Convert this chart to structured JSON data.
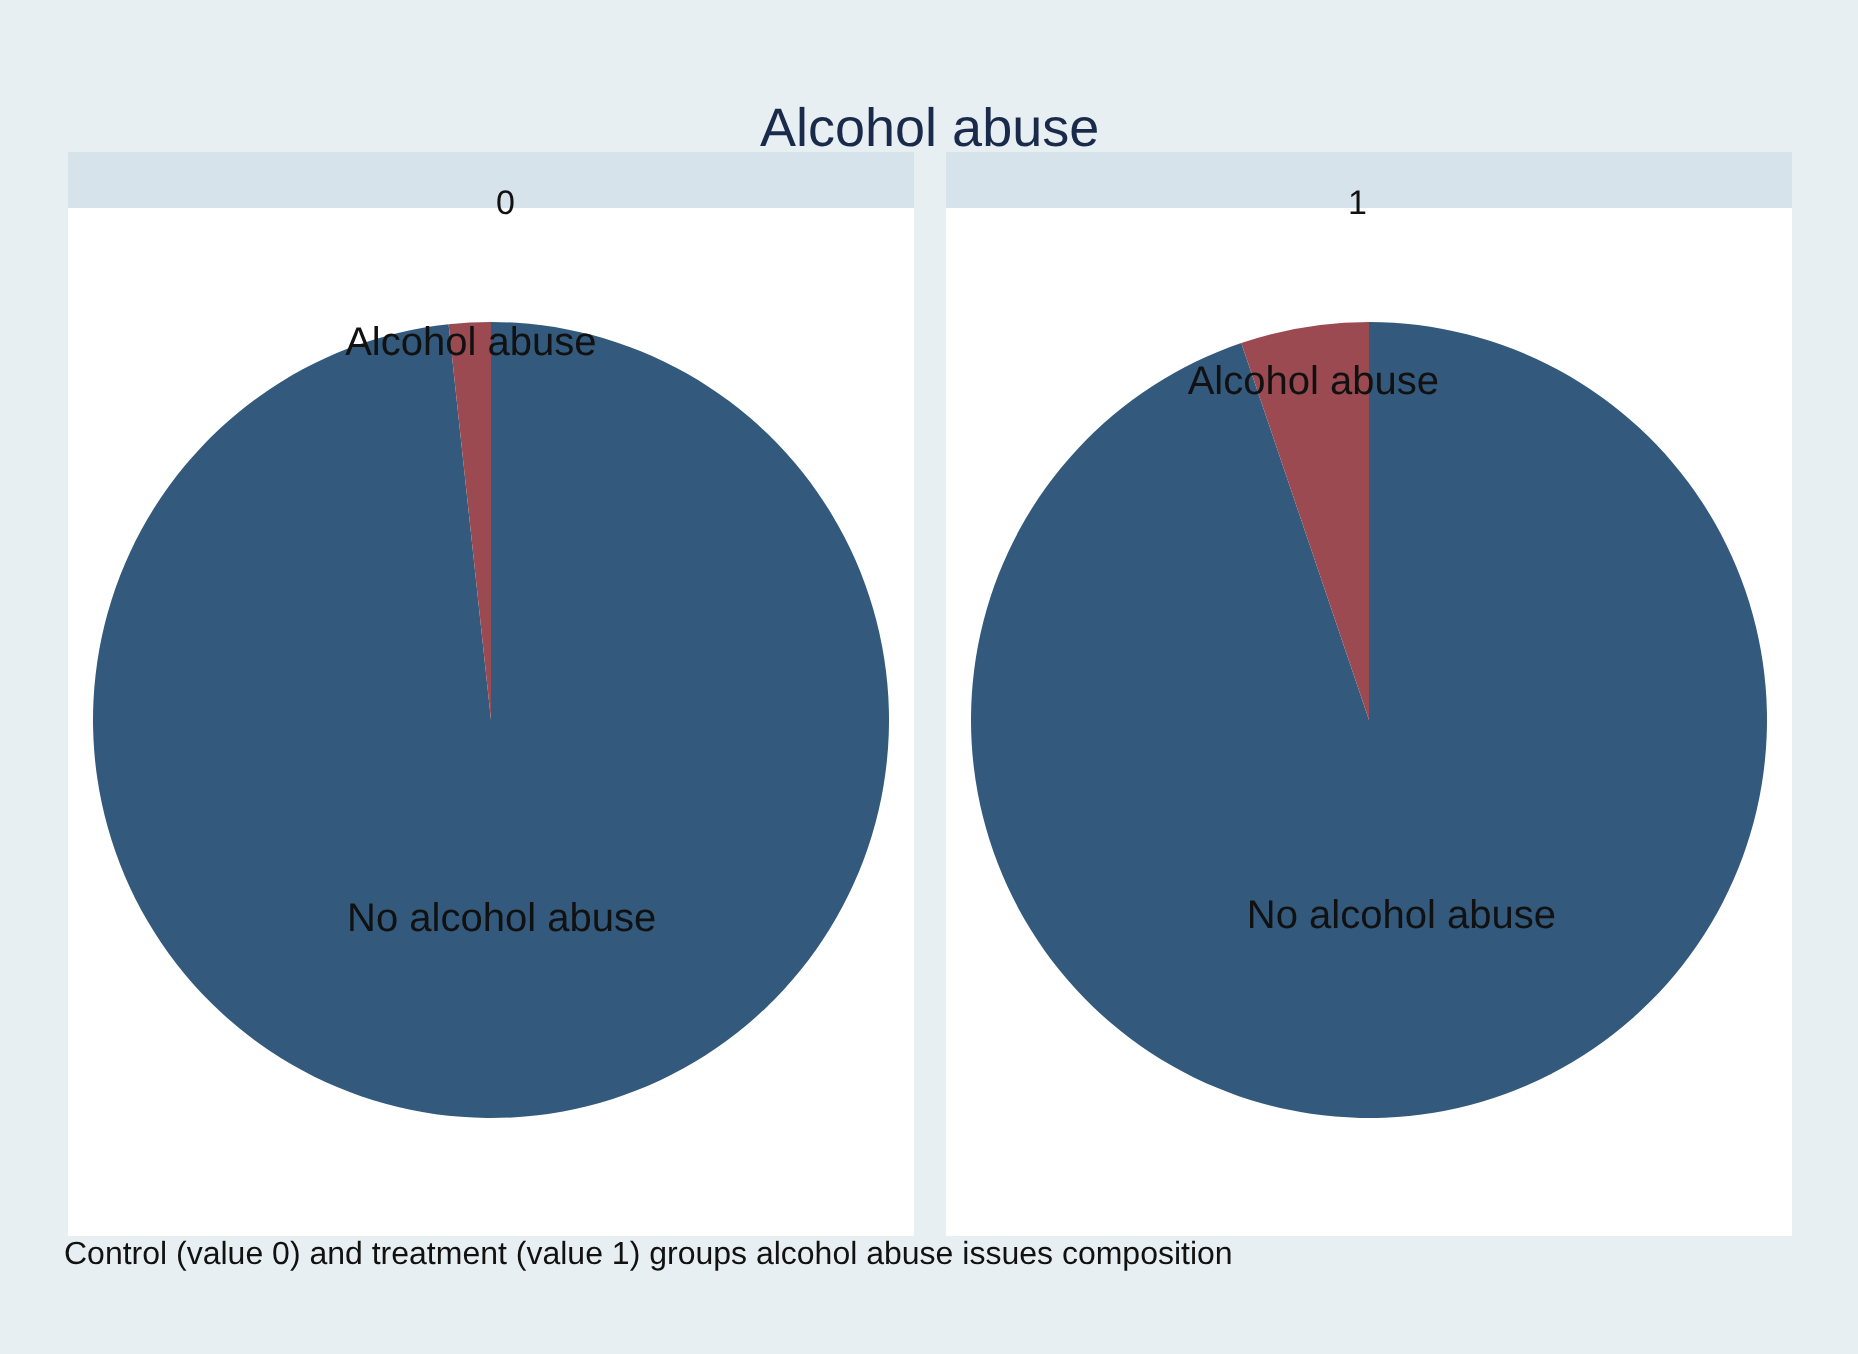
{
  "chart_data": [
    {
      "type": "pie",
      "title": "0",
      "annotations": [
        "Alcohol abuse"
      ],
      "categories": [
        "No alcohol abuse",
        "Alcohol abuse"
      ],
      "values": [
        98.3,
        1.7
      ],
      "colors": [
        "#335a7c",
        "#9a4a50"
      ]
    },
    {
      "type": "pie",
      "title": "1",
      "annotations": [
        "Control (value 0) and treatment (value 1) groups alcohol abuse issues composition"
      ],
      "categories": [
        "No alcohol abuse",
        "Alcohol abuse"
      ],
      "values": [
        94.8,
        5.2
      ],
      "colors": [
        "#335a7c",
        "#9a4a50"
      ]
    }
  ]
}
